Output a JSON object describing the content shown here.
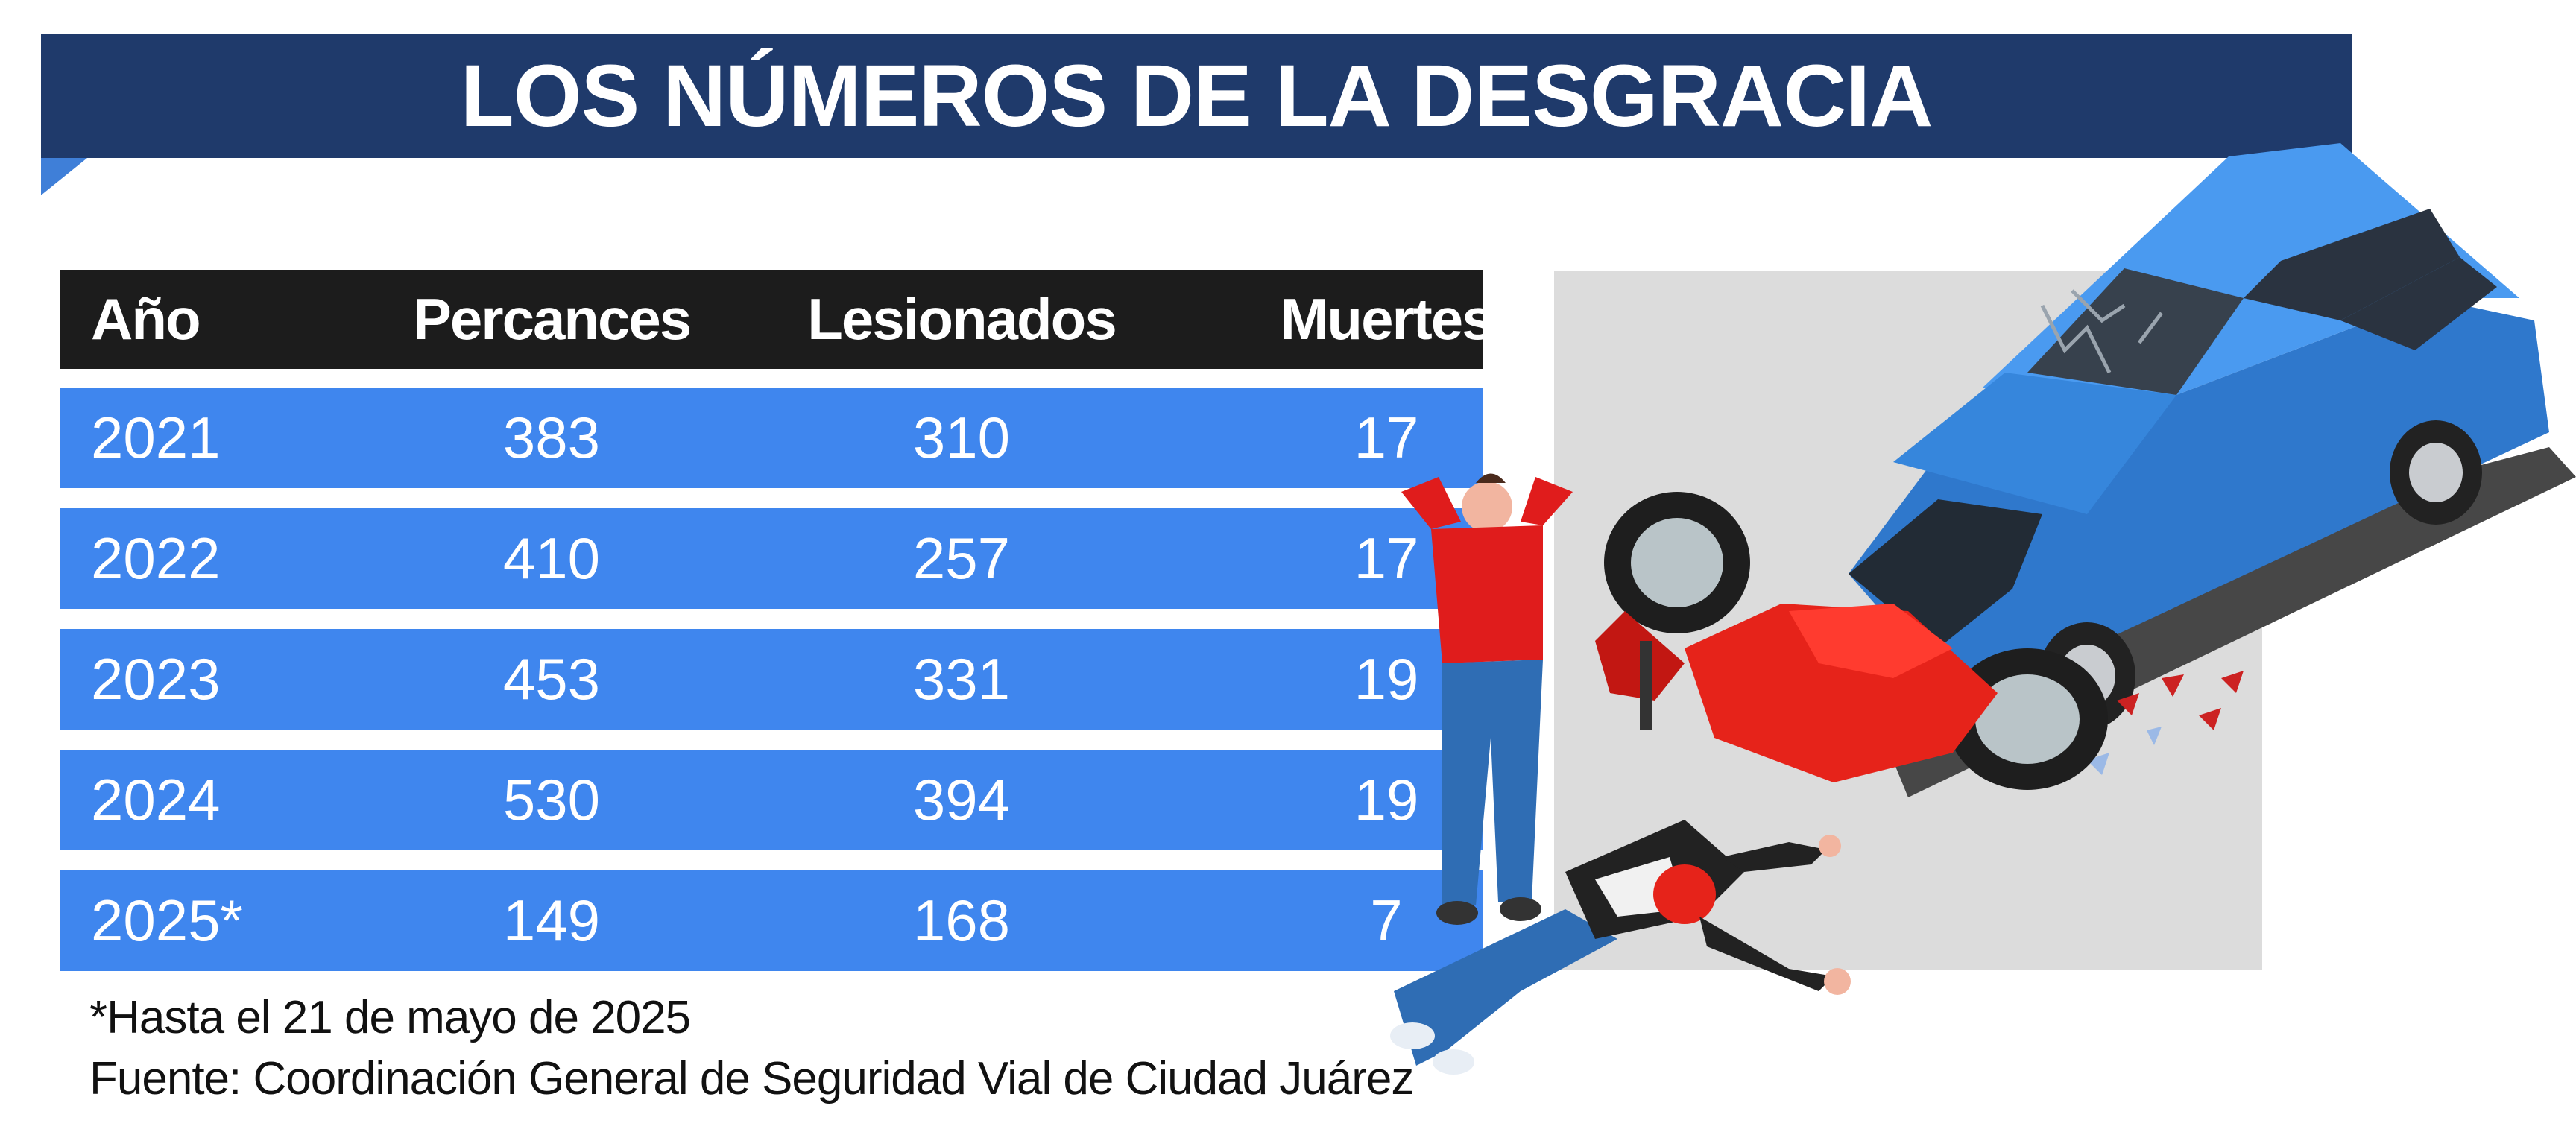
{
  "title": "LOS NÚMEROS DE LA DESGRACIA",
  "table": {
    "headers": [
      "Año",
      "Percances",
      "Lesionados",
      "Muertes"
    ],
    "rows": [
      [
        "2021",
        "383",
        "310",
        "17"
      ],
      [
        "2022",
        "410",
        "257",
        "17"
      ],
      [
        "2023",
        "453",
        "331",
        "19"
      ],
      [
        "2024",
        "530",
        "394",
        "19"
      ],
      [
        "2025*",
        "149",
        "168",
        "7"
      ]
    ]
  },
  "notes": {
    "footnote": "*Hasta el 21 de mayo de 2025",
    "source": "Fuente: Coordinación General de Seguridad Vial de Ciudad Juárez"
  },
  "colors": {
    "banner": "#1f3a6b",
    "header_row": "#1c1c1c",
    "data_row": "#3f86ee",
    "car": "#3d8ee6",
    "motorcycle": "#e6231a"
  },
  "illustration": {
    "icons": [
      "car-icon",
      "motorcycle-icon",
      "standing-person-icon",
      "fallen-rider-icon"
    ]
  }
}
